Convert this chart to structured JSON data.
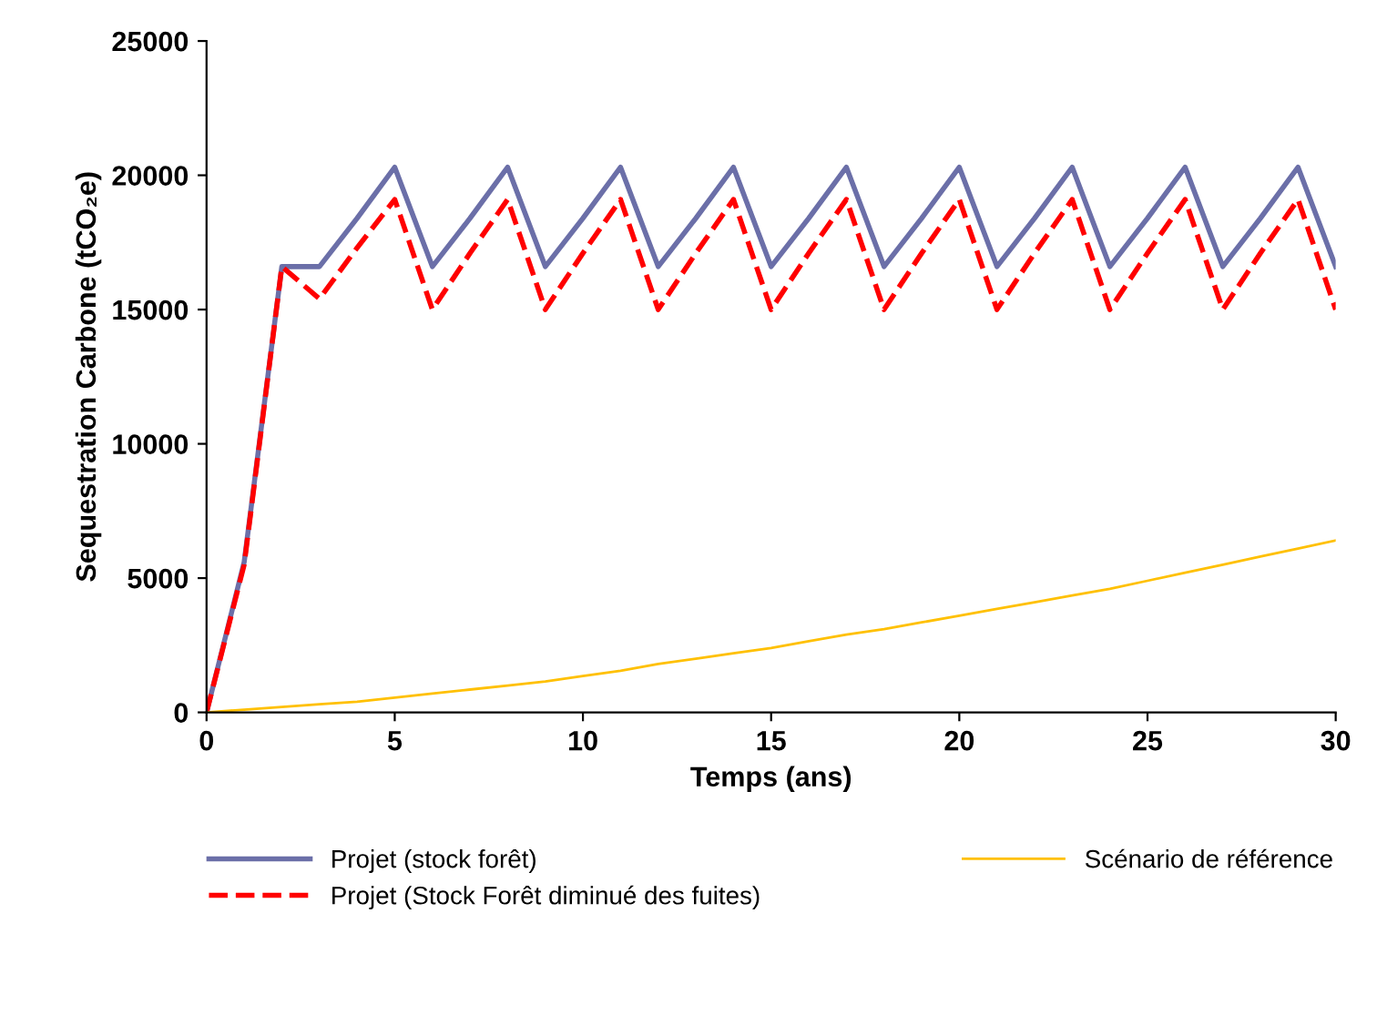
{
  "chart_data": {
    "type": "line",
    "xlabel": "Temps (ans)",
    "ylabel": "Sequestration Carbone (tCO₂e)",
    "x": [
      0,
      1,
      2,
      3,
      4,
      5,
      6,
      7,
      8,
      9,
      10,
      11,
      12,
      13,
      14,
      15,
      16,
      17,
      18,
      19,
      20,
      21,
      22,
      23,
      24,
      25,
      26,
      27,
      28,
      29,
      30
    ],
    "series": [
      {
        "name": "Projet (stock forêt)",
        "color": "#6b6fa8",
        "values": [
          0,
          5600,
          16600,
          16600,
          18400,
          20300,
          16600,
          18400,
          20300,
          16600,
          18400,
          20300,
          16600,
          18400,
          20300,
          16600,
          18400,
          20300,
          16600,
          18400,
          20300,
          16600,
          18400,
          20300,
          16600,
          18400,
          20300,
          16600,
          18400,
          20300,
          16600
        ]
      },
      {
        "name": "Projet (Stock Forêt diminué des fuites)",
        "color": "#ff0000",
        "line_style": "dashed",
        "values": [
          0,
          5500,
          16600,
          15400,
          17300,
          19100,
          15000,
          17100,
          19100,
          15000,
          17100,
          19100,
          15000,
          17100,
          19100,
          15000,
          17100,
          19100,
          15000,
          17100,
          19100,
          15000,
          17100,
          19100,
          15000,
          17100,
          19100,
          15000,
          17100,
          19100,
          15000
        ]
      },
      {
        "name": "Scénario de référence",
        "color": "#ffc000",
        "values": [
          0,
          100,
          200,
          300,
          400,
          550,
          700,
          850,
          1000,
          1150,
          1350,
          1550,
          1800,
          2000,
          2200,
          2400,
          2650,
          2900,
          3100,
          3350,
          3600,
          3850,
          4100,
          4350,
          4600,
          4900,
          5200,
          5500,
          5800,
          6100,
          6400
        ]
      }
    ],
    "xlim": [
      0,
      30
    ],
    "xticks": [
      0,
      5,
      10,
      15,
      20,
      25,
      30
    ],
    "ylim": [
      0,
      25000
    ],
    "yticks": [
      0,
      5000,
      10000,
      15000,
      20000,
      25000
    ],
    "grid": false,
    "legend": "bottom",
    "marker": "none"
  }
}
